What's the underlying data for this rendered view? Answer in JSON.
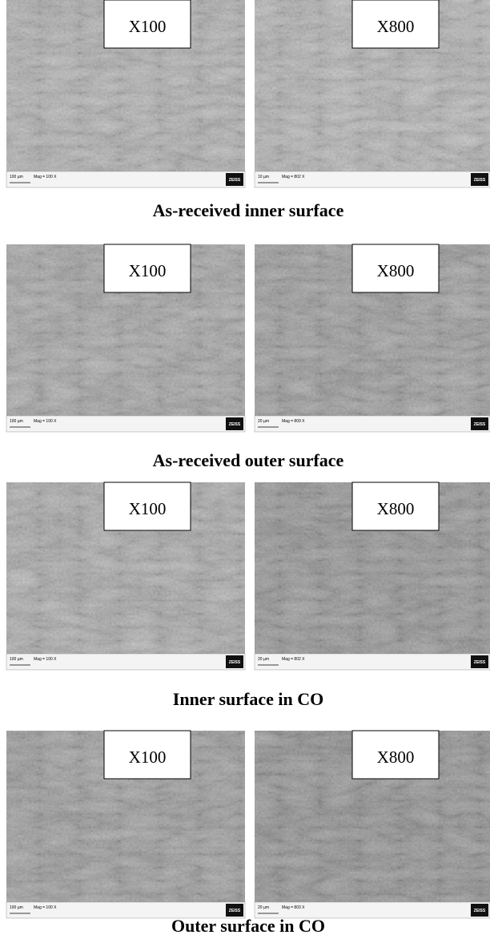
{
  "brand": "ZEISS",
  "rows": [
    {
      "caption": "As-received inner surface",
      "panels": [
        {
          "label": "X100",
          "scale": "100 µm",
          "mag": "Mag = 100 X"
        },
        {
          "label": "X800",
          "scale": "10 µm",
          "mag": "Mag = 802 X"
        }
      ]
    },
    {
      "caption": "As-received outer surface",
      "panels": [
        {
          "label": "X100",
          "scale": "100 µm",
          "mag": "Mag = 100 X"
        },
        {
          "label": "X800",
          "scale": "20 µm",
          "mag": "Mag = 809 X"
        }
      ]
    },
    {
      "caption": "Inner surface in CO",
      "panels": [
        {
          "label": "X100",
          "scale": "100 µm",
          "mag": "Mag = 100 X"
        },
        {
          "label": "X800",
          "scale": "20 µm",
          "mag": "Mag = 802 X"
        }
      ]
    },
    {
      "caption": "Outer surface in CO",
      "panels": [
        {
          "label": "X100",
          "scale": "100 µm",
          "mag": "Mag = 100 X"
        },
        {
          "label": "X800",
          "scale": "20 µm",
          "mag": "Mag = 803 X"
        }
      ]
    }
  ]
}
